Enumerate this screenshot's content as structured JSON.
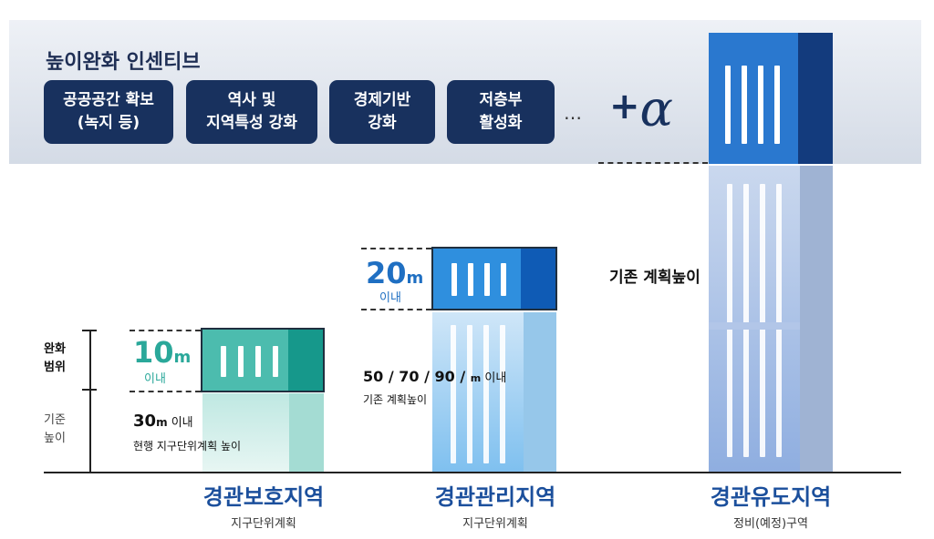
{
  "incentive": {
    "title": "높이완화 인센티브",
    "items": [
      {
        "label": "공공공간 확보\n(녹지 등)"
      },
      {
        "label": "역사 및\n지역특성 강화"
      },
      {
        "label": "경제기반\n강화"
      },
      {
        "label": "저층부\n활성화"
      }
    ],
    "ellipsis": "…",
    "plus": "+",
    "alpha": "α"
  },
  "axis": {
    "relax_range": "완화\n범위",
    "base_height": "기준\n높이"
  },
  "protect_zone": {
    "name": "경관보호지역",
    "sub": "지구단위계획",
    "bonus_number": "10",
    "bonus_unit": "m",
    "bonus_caption": "이내",
    "base_number": "30",
    "base_unit": "m",
    "base_suffix": " 이내",
    "base_caption": "현행 지구단위계획 높이"
  },
  "manage_zone": {
    "name": "경관관리지역",
    "sub": "지구단위계획",
    "bonus_number": "20",
    "bonus_unit": "m",
    "bonus_caption": "이내",
    "base_values": "50 / 70 / 90 /",
    "base_unit": "m",
    "base_suffix": " 이내",
    "base_caption": "기존 계획높이"
  },
  "induce_zone": {
    "name": "경관유도지역",
    "sub": "정비(예정)구역",
    "label": "기존 계획높이"
  },
  "colors": {
    "navy": "#18315e",
    "protect": "#3db5a8",
    "manage": "#1f6fc2",
    "induce": "#174a9c"
  }
}
